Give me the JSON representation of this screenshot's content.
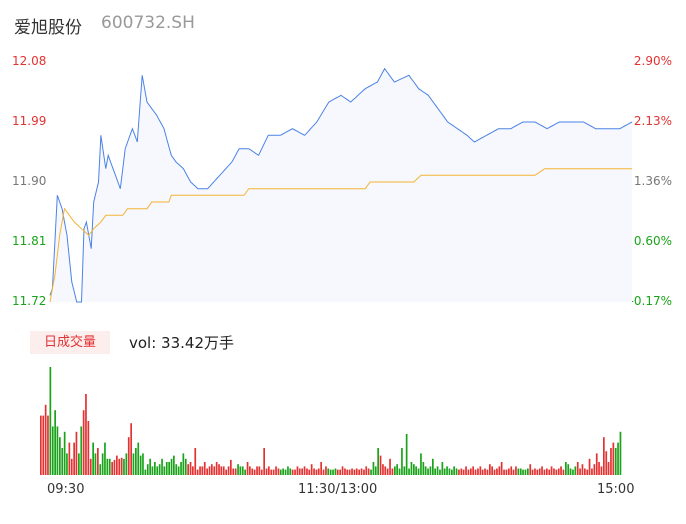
{
  "header": {
    "name": "爱旭股份",
    "code": "600732.SH"
  },
  "colors": {
    "up": "#e33232",
    "down": "#1aa31a",
    "price_line": "#4b83e6",
    "avg_line": "#f4b334",
    "area": "#f6f8fd"
  },
  "volume_panel": {
    "tab_label": "日成交量",
    "vol_text": "vol: 33.42万手"
  },
  "chart_data": [
    {
      "type": "line",
      "title": "",
      "y_left_ticks": [
        "12.08",
        "11.99",
        "11.90",
        "11.81",
        "11.72"
      ],
      "y_right_ticks": [
        "2.90%",
        "2.13%",
        "1.36%",
        "0.60%",
        "-0.17%"
      ],
      "x_ticks": [
        "09:30",
        "11:30/13:00",
        "15:00"
      ],
      "ylim": [
        11.72,
        12.08
      ],
      "price_anchors": [
        [
          0,
          11.73
        ],
        [
          1,
          11.74
        ],
        [
          3,
          11.88
        ],
        [
          5,
          11.86
        ],
        [
          7,
          11.82
        ],
        [
          9,
          11.75
        ],
        [
          11,
          11.72
        ],
        [
          13,
          11.72
        ],
        [
          14,
          11.83
        ],
        [
          15,
          11.84
        ],
        [
          17,
          11.8
        ],
        [
          18,
          11.87
        ],
        [
          20,
          11.9
        ],
        [
          21,
          11.97
        ],
        [
          23,
          11.92
        ],
        [
          24,
          11.94
        ],
        [
          27,
          11.91
        ],
        [
          29,
          11.89
        ],
        [
          31,
          11.95
        ],
        [
          34,
          11.98
        ],
        [
          36,
          11.96
        ],
        [
          38,
          12.06
        ],
        [
          40,
          12.02
        ],
        [
          44,
          12.0
        ],
        [
          47,
          11.98
        ],
        [
          50,
          11.94
        ],
        [
          52,
          11.93
        ],
        [
          55,
          11.92
        ],
        [
          58,
          11.9
        ],
        [
          61,
          11.89
        ],
        [
          65,
          11.89
        ],
        [
          70,
          11.91
        ],
        [
          75,
          11.93
        ],
        [
          78,
          11.95
        ],
        [
          82,
          11.95
        ],
        [
          86,
          11.94
        ],
        [
          90,
          11.97
        ],
        [
          95,
          11.97
        ],
        [
          100,
          11.98
        ],
        [
          105,
          11.97
        ],
        [
          110,
          11.99
        ],
        [
          115,
          12.02
        ],
        [
          120,
          12.03
        ],
        [
          124,
          12.02
        ],
        [
          130,
          12.04
        ],
        [
          135,
          12.05
        ],
        [
          138,
          12.07
        ],
        [
          142,
          12.05
        ],
        [
          148,
          12.06
        ],
        [
          152,
          12.04
        ],
        [
          156,
          12.03
        ],
        [
          160,
          12.01
        ],
        [
          164,
          11.99
        ],
        [
          168,
          11.98
        ],
        [
          172,
          11.97
        ],
        [
          175,
          11.96
        ],
        [
          180,
          11.97
        ],
        [
          185,
          11.98
        ],
        [
          190,
          11.98
        ],
        [
          195,
          11.99
        ],
        [
          200,
          11.99
        ],
        [
          205,
          11.98
        ],
        [
          210,
          11.99
        ],
        [
          215,
          11.99
        ],
        [
          220,
          11.99
        ],
        [
          225,
          11.98
        ],
        [
          230,
          11.98
        ],
        [
          235,
          11.98
        ],
        [
          240,
          11.99
        ]
      ],
      "avg_anchors": [
        [
          0,
          11.72
        ],
        [
          2,
          11.76
        ],
        [
          4,
          11.82
        ],
        [
          6,
          11.86
        ],
        [
          8,
          11.85
        ],
        [
          10,
          11.84
        ],
        [
          13,
          11.83
        ],
        [
          16,
          11.82
        ],
        [
          18,
          11.83
        ],
        [
          21,
          11.84
        ],
        [
          23,
          11.85
        ],
        [
          30,
          11.85
        ],
        [
          32,
          11.86
        ],
        [
          40,
          11.86
        ],
        [
          42,
          11.87
        ],
        [
          49,
          11.87
        ],
        [
          50,
          11.88
        ],
        [
          80,
          11.88
        ],
        [
          82,
          11.89
        ],
        [
          100,
          11.89
        ],
        [
          102,
          11.89
        ],
        [
          130,
          11.89
        ],
        [
          132,
          11.9
        ],
        [
          150,
          11.9
        ],
        [
          153,
          11.91
        ],
        [
          200,
          11.91
        ],
        [
          204,
          11.92
        ],
        [
          240,
          11.92
        ]
      ],
      "volume_heights": [
        0.55,
        0.55,
        0.65,
        0.55,
        1.0,
        0.45,
        0.6,
        0.45,
        0.35,
        0.25,
        0.4,
        0.2,
        0.3,
        0.15,
        0.3,
        0.4,
        0.2,
        0.45,
        0.6,
        0.75,
        0.5,
        0.15,
        0.3,
        0.2,
        0.25,
        0.1,
        0.2,
        0.3,
        0.15,
        0.15,
        0.12,
        0.14,
        0.18,
        0.15,
        0.16,
        0.15,
        0.2,
        0.35,
        0.48,
        0.2,
        0.25,
        0.3,
        0.18,
        0.2,
        0.05,
        0.1,
        0.15,
        0.08,
        0.12,
        0.08,
        0.1,
        0.15,
        0.08,
        0.12,
        0.12,
        0.15,
        0.18,
        0.1,
        0.08,
        0.12,
        0.2,
        0.15,
        0.1,
        0.12,
        0.08,
        0.25,
        0.05,
        0.08,
        0.08,
        0.12,
        0.06,
        0.08,
        0.1,
        0.08,
        0.12,
        0.1,
        0.08,
        0.08,
        0.05,
        0.08,
        0.14,
        0.06,
        0.06,
        0.1,
        0.08,
        0.08,
        0.05,
        0.12,
        0.08,
        0.06,
        0.05,
        0.08,
        0.08,
        0.05,
        0.25,
        0.06,
        0.08,
        0.05,
        0.05,
        0.08,
        0.06,
        0.05,
        0.06,
        0.05,
        0.08,
        0.06,
        0.05,
        0.05,
        0.08,
        0.06,
        0.06,
        0.08,
        0.06,
        0.05,
        0.1,
        0.06,
        0.05,
        0.06,
        0.12,
        0.05,
        0.08,
        0.06,
        0.05,
        0.05,
        0.06,
        0.05,
        0.05,
        0.08,
        0.06,
        0.05,
        0.05,
        0.06,
        0.05,
        0.06,
        0.05,
        0.06,
        0.05,
        0.08,
        0.06,
        0.05,
        0.12,
        0.08,
        0.25,
        0.18,
        0.1,
        0.08,
        0.06,
        0.15,
        0.06,
        0.08,
        0.1,
        0.06,
        0.25,
        0.08,
        0.38,
        0.06,
        0.12,
        0.1,
        0.08,
        0.06,
        0.2,
        0.12,
        0.08,
        0.06,
        0.08,
        0.15,
        0.06,
        0.08,
        0.05,
        0.12,
        0.06,
        0.08,
        0.06,
        0.05,
        0.08,
        0.06,
        0.05,
        0.06,
        0.05,
        0.08,
        0.05,
        0.06,
        0.08,
        0.05,
        0.06,
        0.08,
        0.05,
        0.06,
        0.05,
        0.1,
        0.08,
        0.05,
        0.06,
        0.08,
        0.12,
        0.05,
        0.05,
        0.06,
        0.08,
        0.05,
        0.08,
        0.06,
        0.06,
        0.05,
        0.05,
        0.06,
        0.1,
        0.05,
        0.06,
        0.05,
        0.06,
        0.08,
        0.05,
        0.06,
        0.05,
        0.08,
        0.06,
        0.05,
        0.06,
        0.08,
        0.05,
        0.12,
        0.1,
        0.06,
        0.05,
        0.08,
        0.12,
        0.06,
        0.1,
        0.06,
        0.05,
        0.15,
        0.06,
        0.1,
        0.2,
        0.12,
        0.08,
        0.35,
        0.22,
        0.12,
        0.25,
        0.3,
        0.25,
        0.3,
        0.4
      ]
    }
  ]
}
